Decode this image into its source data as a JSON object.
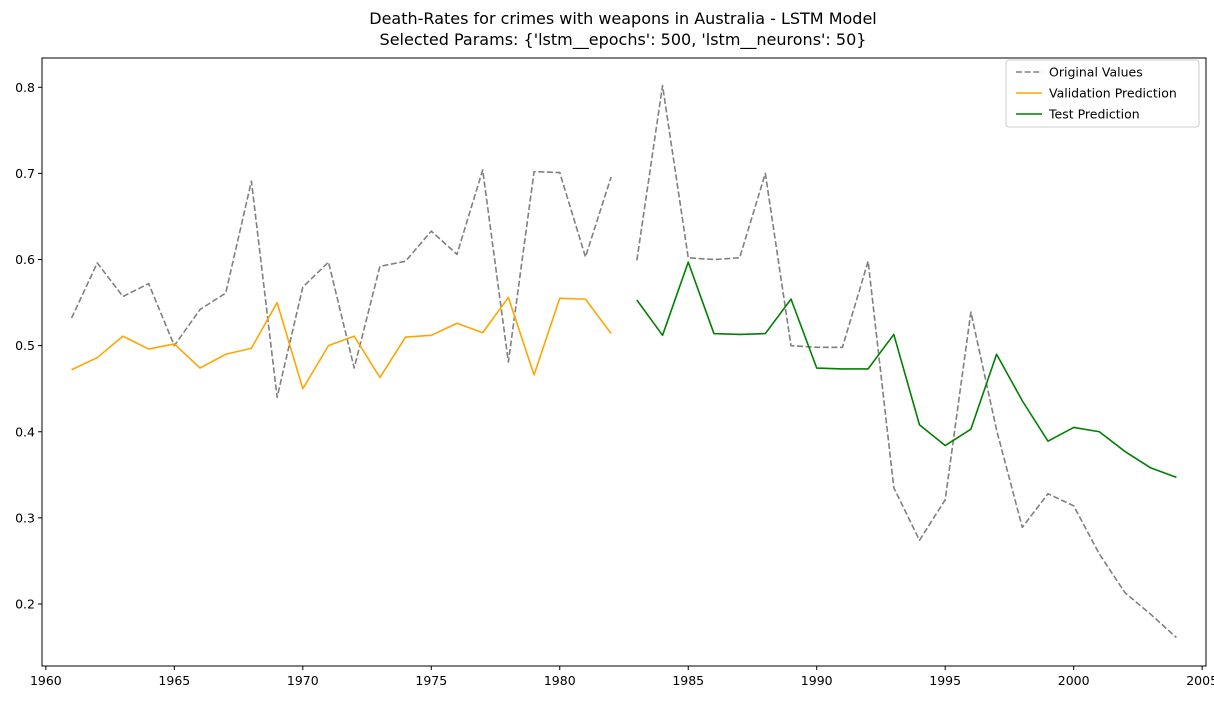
{
  "chart_data": {
    "type": "line",
    "title": "Death-Rates for crimes with weapons in Australia - LSTM Model",
    "subtitle": "Selected Params: {'lstm__epochs': 500, 'lstm__neurons': 50}",
    "xlabel": "",
    "ylabel": "",
    "xlim": [
      1959.85,
      2005.15
    ],
    "ylim": [
      0.128,
      0.834
    ],
    "xticks": [
      1960,
      1965,
      1970,
      1975,
      1980,
      1985,
      1990,
      1995,
      2000,
      2005
    ],
    "xtick_labels": [
      "1960",
      "1965",
      "1970",
      "1975",
      "1980",
      "1985",
      "1990",
      "1995",
      "2000",
      "2005"
    ],
    "yticks": [
      0.2,
      0.3,
      0.4,
      0.5,
      0.6,
      0.7,
      0.8
    ],
    "ytick_labels": [
      "0.2",
      "0.3",
      "0.4",
      "0.5",
      "0.6",
      "0.7",
      "0.8"
    ],
    "grid": false,
    "legend_position": "top-right",
    "series": [
      {
        "name": "Original Values",
        "color": "#808080",
        "dash": "dashed",
        "segments": [
          {
            "x": [
              1961,
              1962,
              1963,
              1964,
              1965,
              1966,
              1967,
              1968,
              1969,
              1970,
              1971,
              1972,
              1973,
              1974,
              1975,
              1976,
              1977,
              1978,
              1979,
              1980,
              1981,
              1982
            ],
            "y": [
              0.532,
              0.596,
              0.557,
              0.572,
              0.5,
              0.542,
              0.561,
              0.691,
              0.44,
              0.568,
              0.597,
              0.474,
              0.592,
              0.598,
              0.633,
              0.606,
              0.704,
              0.481,
              0.702,
              0.701,
              0.603,
              0.696
            ]
          },
          {
            "x": [
              1983,
              1984,
              1985,
              1986,
              1987,
              1988,
              1989,
              1990,
              1991,
              1992,
              1993,
              1994,
              1995,
              1996,
              1997,
              1998,
              1999,
              2000,
              2001,
              2002,
              2003,
              2004
            ],
            "y": [
              0.599,
              0.802,
              0.602,
              0.6,
              0.602,
              0.7,
              0.5,
              0.498,
              0.498,
              0.598,
              0.335,
              0.274,
              0.321,
              0.539,
              0.402,
              0.289,
              0.328,
              0.314,
              0.258,
              0.213,
              0.188,
              0.161
            ]
          }
        ]
      },
      {
        "name": "Validation Prediction",
        "color": "#FFA500",
        "dash": "solid",
        "x": [
          1961,
          1962,
          1963,
          1964,
          1965,
          1966,
          1967,
          1968,
          1969,
          1970,
          1971,
          1972,
          1973,
          1974,
          1975,
          1976,
          1977,
          1978,
          1979,
          1980,
          1981,
          1982
        ],
        "y": [
          0.472,
          0.486,
          0.511,
          0.496,
          0.502,
          0.474,
          0.49,
          0.497,
          0.55,
          0.45,
          0.5,
          0.511,
          0.463,
          0.51,
          0.512,
          0.526,
          0.515,
          0.556,
          0.466,
          0.555,
          0.554,
          0.514
        ]
      },
      {
        "name": "Test Prediction",
        "color": "#008000",
        "dash": "solid",
        "x": [
          1983,
          1984,
          1985,
          1986,
          1987,
          1988,
          1989,
          1990,
          1991,
          1992,
          1993,
          1994,
          1995,
          1996,
          1997,
          1998,
          1999,
          2000,
          2001,
          2002,
          2003,
          2004
        ],
        "y": [
          0.553,
          0.512,
          0.597,
          0.514,
          0.513,
          0.514,
          0.554,
          0.474,
          0.473,
          0.473,
          0.513,
          0.408,
          0.384,
          0.403,
          0.49,
          0.436,
          0.389,
          0.405,
          0.4,
          0.377,
          0.358,
          0.347
        ]
      }
    ]
  }
}
